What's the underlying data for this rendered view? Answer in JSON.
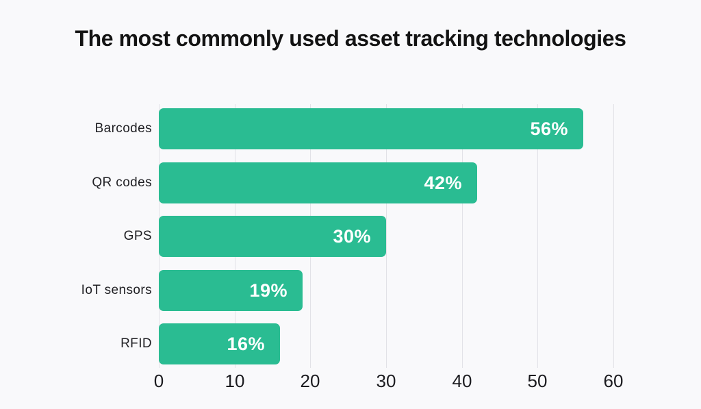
{
  "title": "The most commonly used asset tracking technologies",
  "colors": {
    "background": "#F9F9FB",
    "bar": "#2ABC92",
    "gridline": "#E2E2E7",
    "title_text": "#131313",
    "category_text": "#1F1F23",
    "tick_text": "#1B1B1F",
    "value_text": "#FFFFFF"
  },
  "chart_data": {
    "type": "bar",
    "orientation": "horizontal",
    "title": "The most commonly used asset tracking technologies",
    "categories": [
      "Barcodes",
      "QR codes",
      "GPS",
      "IoT sensors",
      "RFID"
    ],
    "values": [
      56,
      42,
      30,
      19,
      16
    ],
    "value_labels": [
      "56%",
      "42%",
      "30%",
      "19%",
      "16%"
    ],
    "xlabel": "",
    "ylabel": "",
    "xlim": [
      0,
      60
    ],
    "x_ticks": [
      0,
      10,
      20,
      30,
      40,
      50,
      60
    ],
    "grid": true,
    "legend": false
  }
}
